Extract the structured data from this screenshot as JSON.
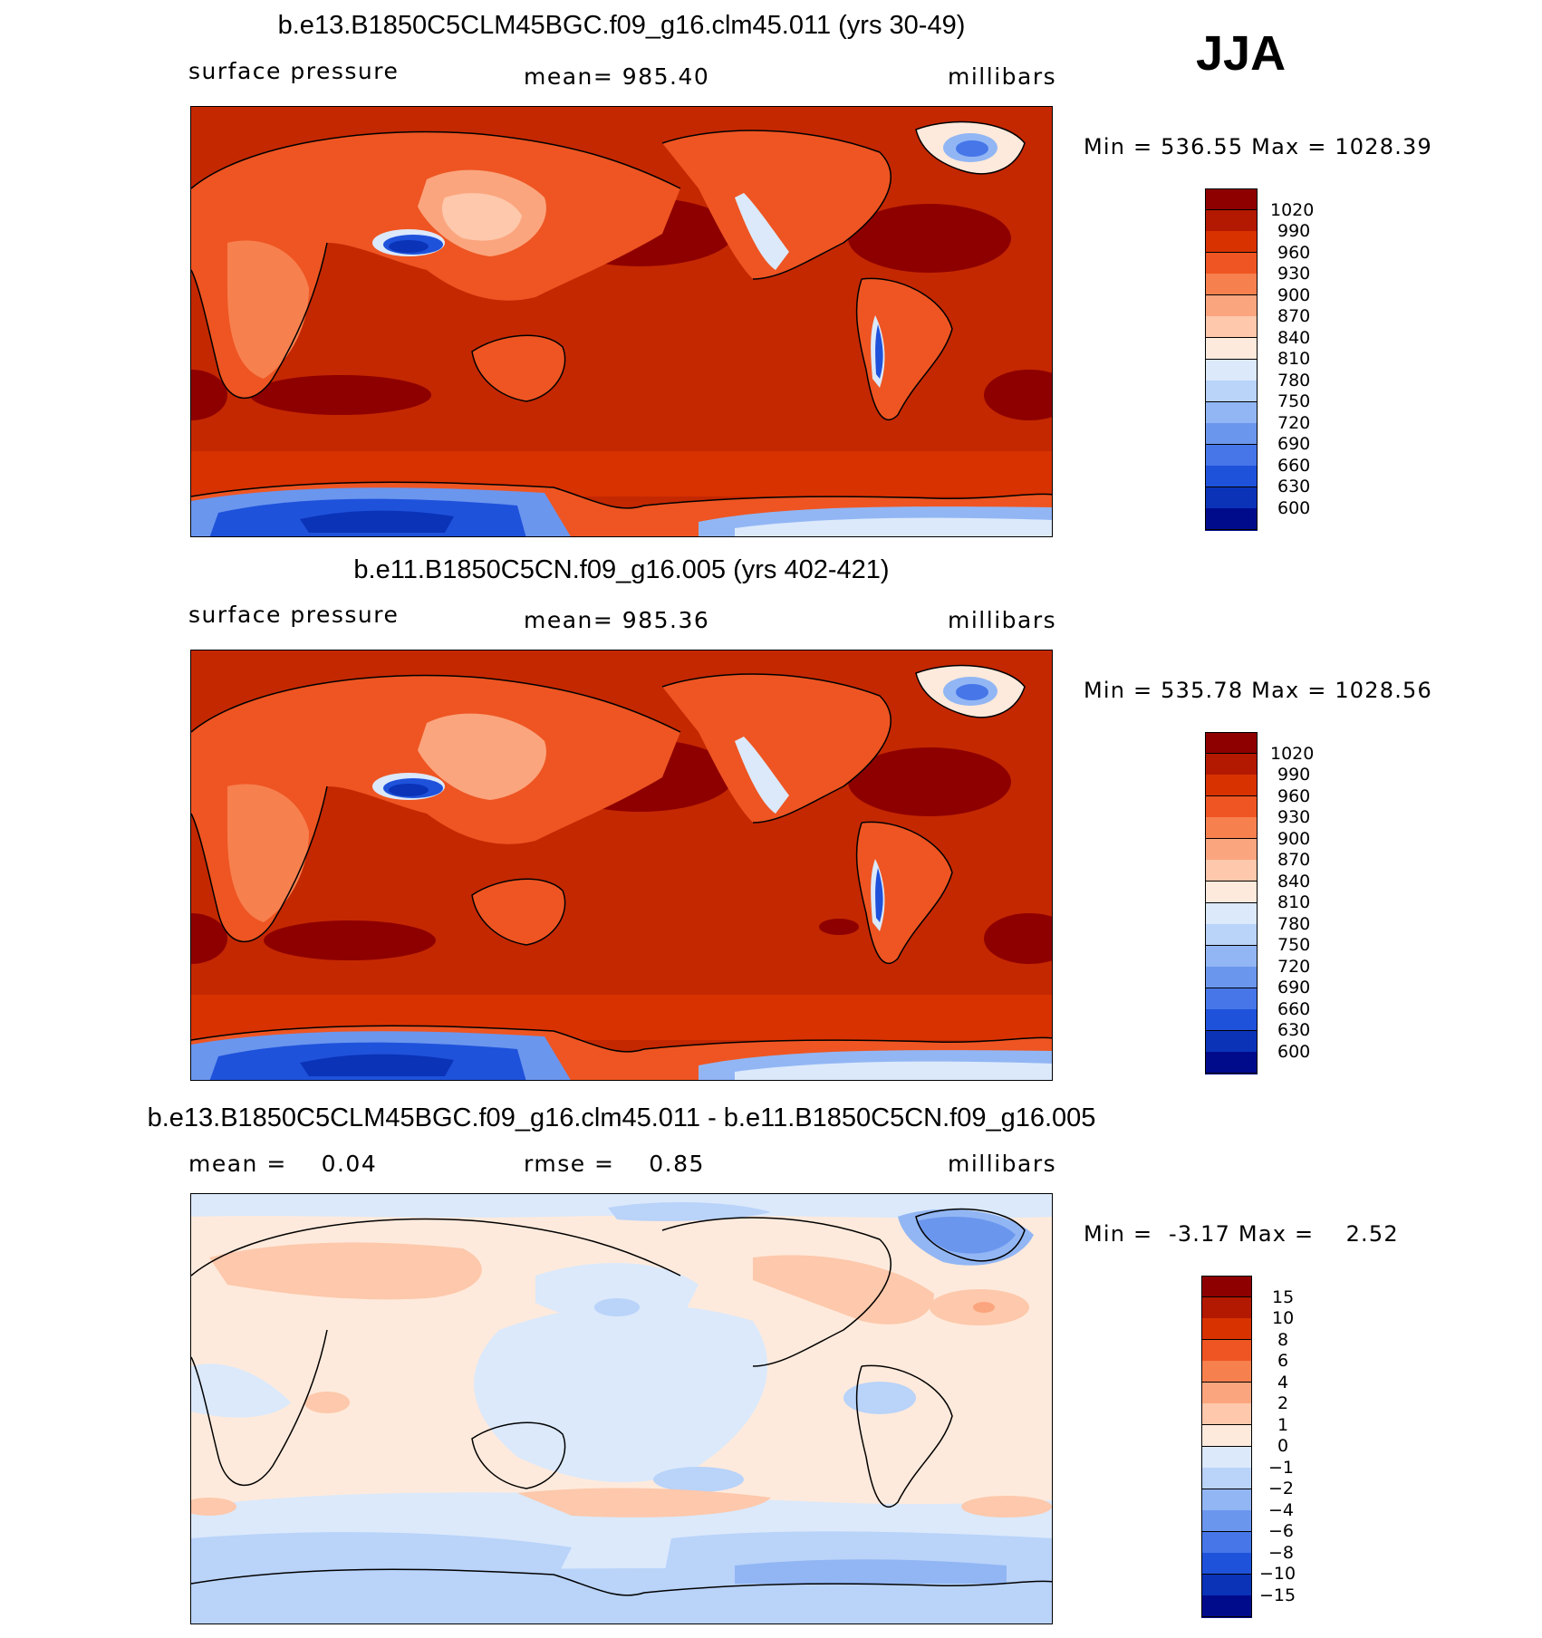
{
  "season": "JJA",
  "panels": [
    {
      "title": "b.e13.B1850C5CLM45BGC.f09_g16.clm45.011 (yrs 30-49)",
      "left_label": "surface pressure",
      "center_label": "mean= 985.40",
      "right_label": "millibars",
      "minmax": "Min = 536.55 Max = 1028.39"
    },
    {
      "title": "b.e11.B1850C5CN.f09_g16.005 (yrs 402-421)",
      "left_label": "surface pressure",
      "center_label": "mean= 985.36",
      "right_label": "millibars",
      "minmax": "Min = 535.78 Max = 1028.56"
    },
    {
      "title": "b.e13.B1850C5CLM45BGC.f09_g16.clm45.011 - b.e11.B1850C5CN.f09_g16.005",
      "left_label": "mean =    0.04",
      "center_label": "rmse =    0.85",
      "right_label": "millibars",
      "minmax": "Min =  -3.17 Max =    2.52"
    }
  ],
  "colorbars": {
    "absolute_labels": [
      "1020",
      "990",
      "960",
      "930",
      "900",
      "870",
      "840",
      "810",
      "780",
      "750",
      "720",
      "690",
      "660",
      "630",
      "600"
    ],
    "absolute_colors": [
      "#8e0000",
      "#b31800",
      "#d83200",
      "#ee5522",
      "#f7804f",
      "#fba57e",
      "#fdc8ab",
      "#feeadc",
      "#dbe9fb",
      "#b9d3f9",
      "#92b6f4",
      "#6b96ee",
      "#4676e8",
      "#1f52db",
      "#0a33b8",
      "#000b8c"
    ],
    "diff_labels": [
      "15",
      "10",
      "8",
      "6",
      "4",
      "2",
      "1",
      "0",
      "−1",
      "−2",
      "−4",
      "−6",
      "−8",
      "−10",
      "−15"
    ],
    "diff_colors": [
      "#8e0000",
      "#b31800",
      "#d83200",
      "#ee5522",
      "#f7804f",
      "#fba57e",
      "#fdc8ab",
      "#feeadc",
      "#dbe9fb",
      "#b9d3f9",
      "#92b6f4",
      "#6b96ee",
      "#4676e8",
      "#1f52db",
      "#0a33b8",
      "#000b8c"
    ]
  },
  "chart_data": [
    {
      "type": "heatmap",
      "title": "b.e13.B1850C5CLM45BGC.f09_g16.clm45.011 (yrs 30-49)",
      "variable": "surface pressure",
      "units": "millibars",
      "mean": 985.4,
      "min": 536.55,
      "max": 1028.39,
      "contour_levels": [
        600,
        630,
        660,
        690,
        720,
        750,
        780,
        810,
        840,
        870,
        900,
        930,
        960,
        990,
        1020
      ]
    },
    {
      "type": "heatmap",
      "title": "b.e11.B1850C5CN.f09_g16.005 (yrs 402-421)",
      "variable": "surface pressure",
      "units": "millibars",
      "mean": 985.36,
      "min": 535.78,
      "max": 1028.56,
      "contour_levels": [
        600,
        630,
        660,
        690,
        720,
        750,
        780,
        810,
        840,
        870,
        900,
        930,
        960,
        990,
        1020
      ]
    },
    {
      "type": "heatmap",
      "title": "b.e13.B1850C5CLM45BGC.f09_g16.clm45.011 - b.e11.B1850C5CN.f09_g16.005",
      "units": "millibars",
      "mean": 0.04,
      "rmse": 0.85,
      "min": -3.17,
      "max": 2.52,
      "contour_levels": [
        -15,
        -10,
        -8,
        -6,
        -4,
        -2,
        -1,
        0,
        1,
        2,
        4,
        6,
        8,
        10,
        15
      ]
    }
  ]
}
